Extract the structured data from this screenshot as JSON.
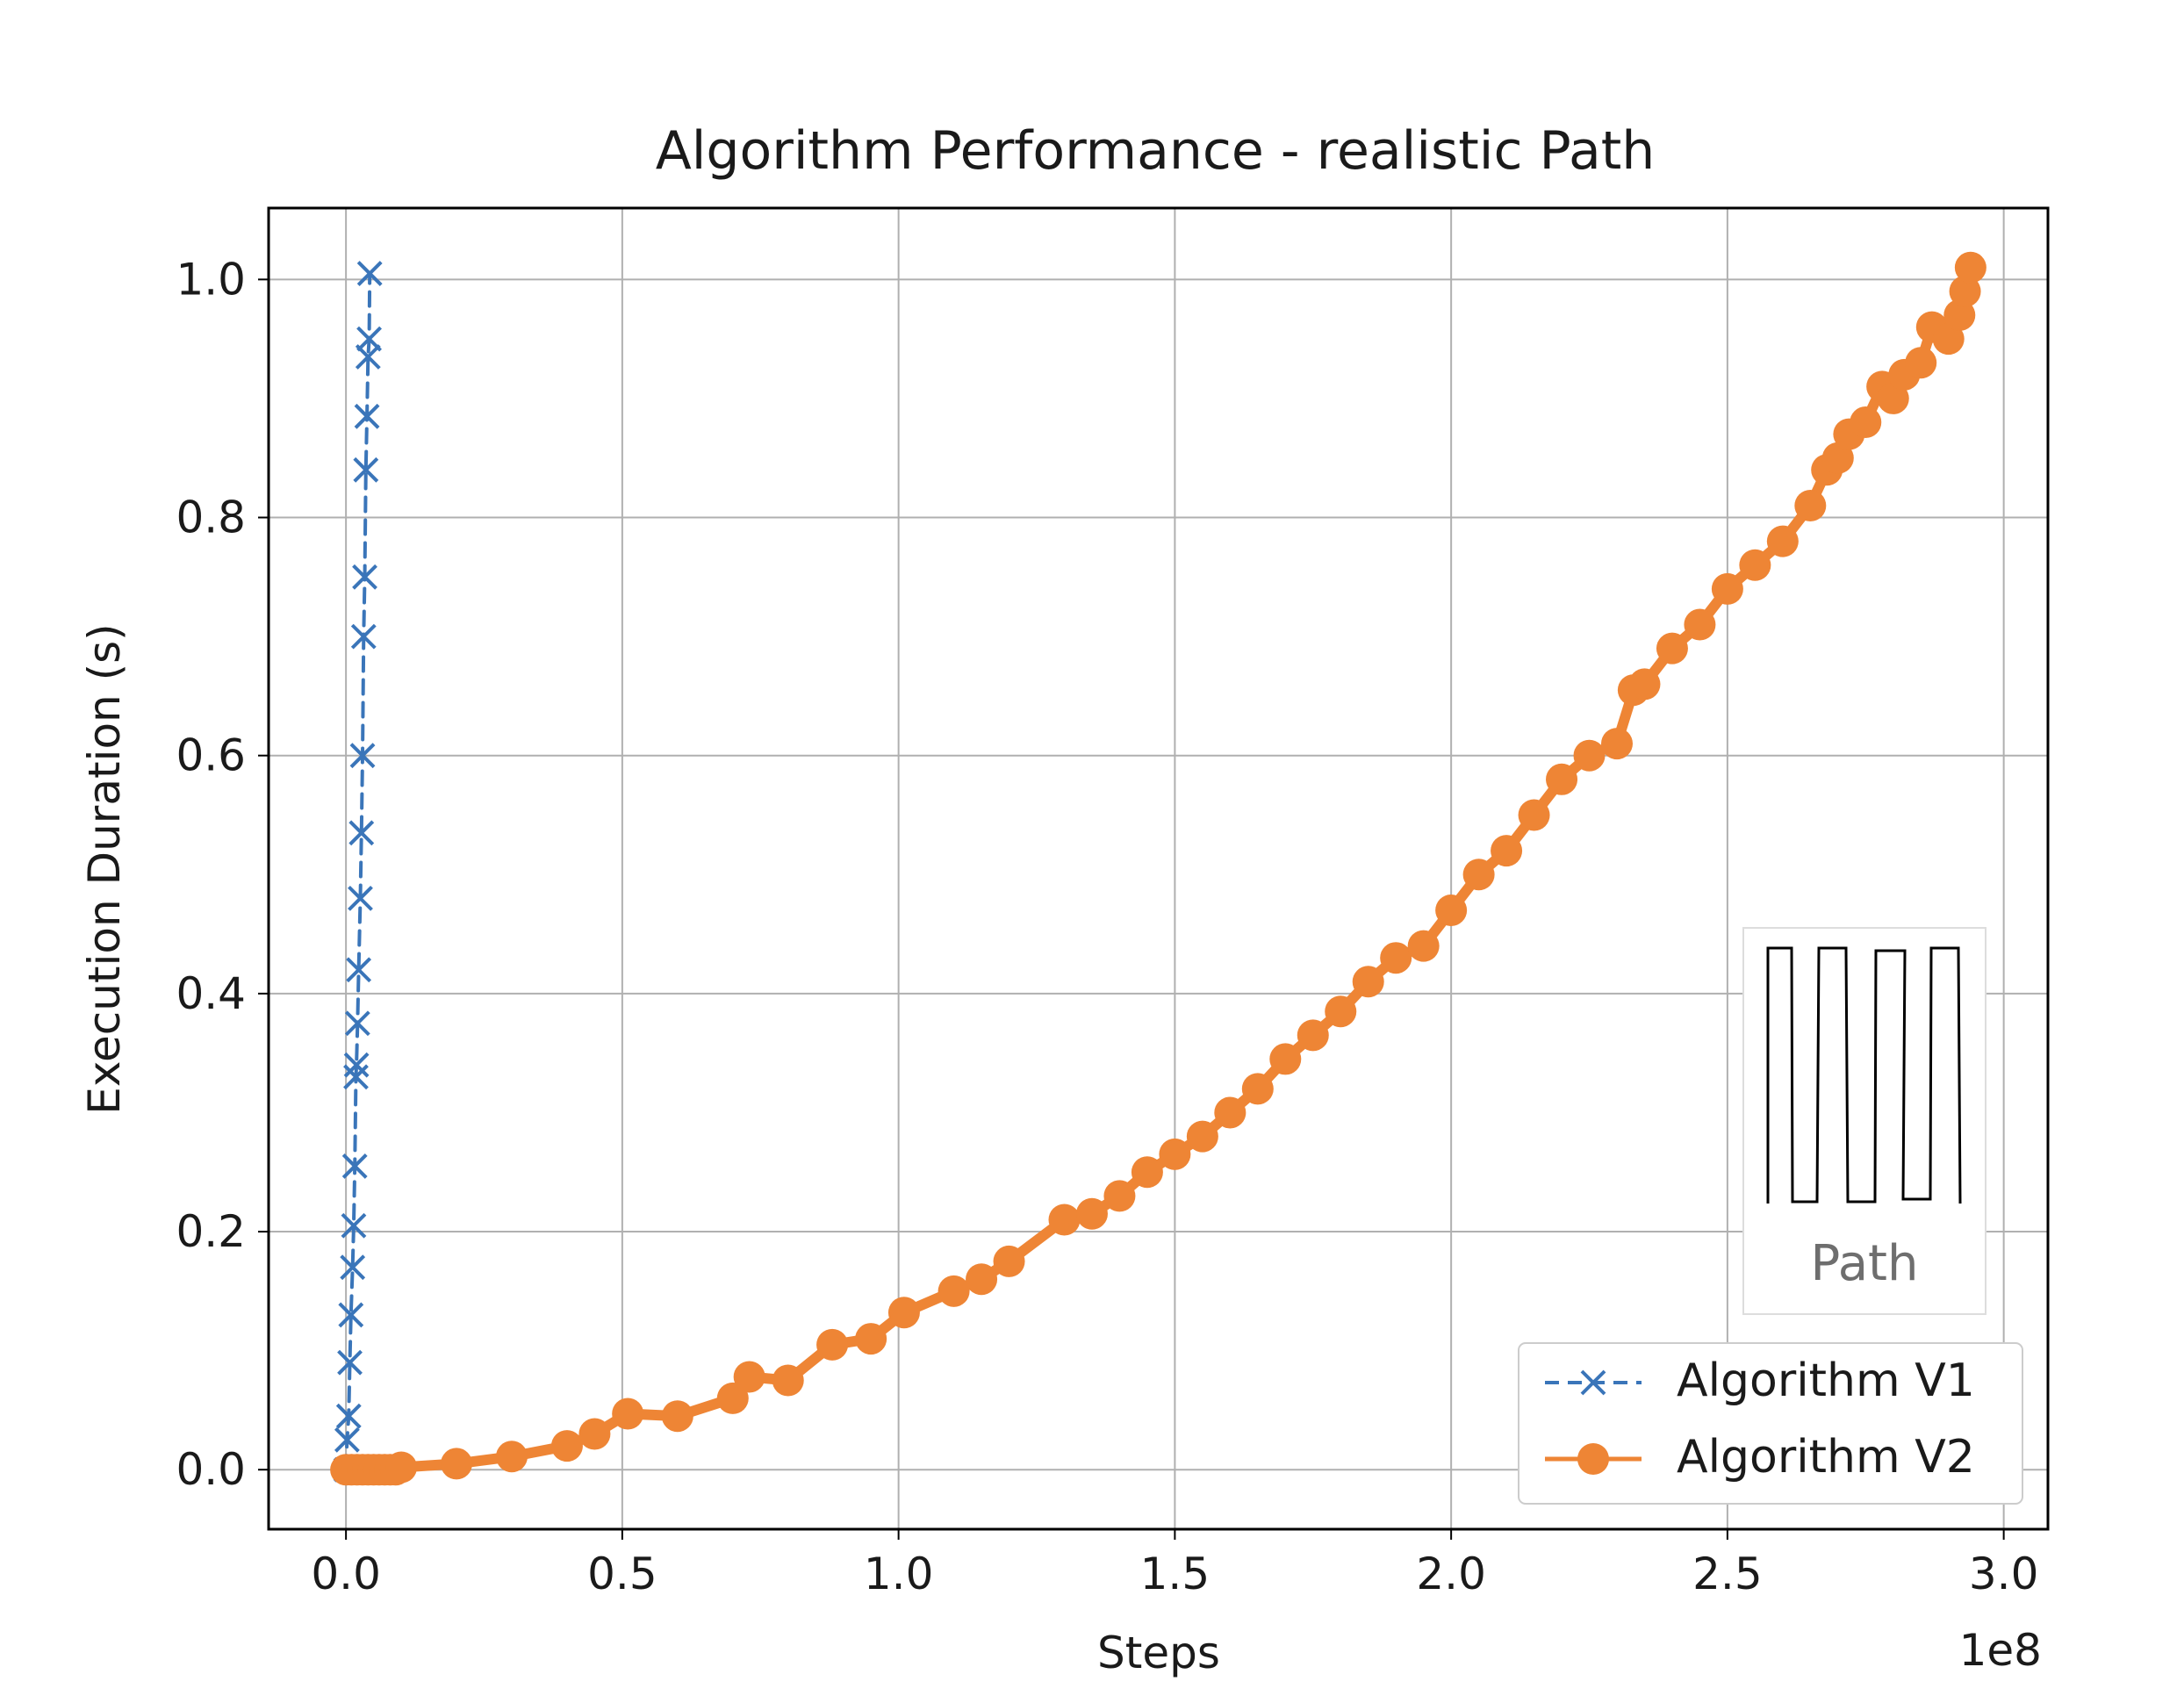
{
  "chart_data": {
    "type": "line",
    "title": "Algorithm Performance - realistic Path",
    "xlabel": "Steps",
    "ylabel": "Execution Duration (s)",
    "x_offset_label": "1e8",
    "xlim": [
      -0.14,
      3.08
    ],
    "ylim": [
      -0.05,
      1.06
    ],
    "x_scale_factor": 100000000,
    "xticks": [
      0.0,
      0.5,
      1.0,
      1.5,
      2.0,
      2.5,
      3.0
    ],
    "xtick_labels": [
      "0.0",
      "0.5",
      "1.0",
      "1.5",
      "2.0",
      "2.5",
      "3.0"
    ],
    "yticks": [
      0.0,
      0.2,
      0.4,
      0.6,
      0.8,
      1.0
    ],
    "ytick_labels": [
      "0.0",
      "0.2",
      "0.4",
      "0.6",
      "0.8",
      "1.0"
    ],
    "grid": true,
    "legend_position": "lower-right",
    "series": [
      {
        "name": "Algorithm V1",
        "color": "#3a75b9",
        "line_style": "dashed",
        "marker": "x",
        "x": [
          0.0,
          0.002,
          0.005,
          0.007,
          0.009,
          0.012,
          0.014,
          0.016,
          0.018,
          0.019,
          0.021,
          0.023,
          0.026,
          0.028,
          0.03,
          0.032,
          0.034,
          0.036,
          0.038,
          0.04,
          0.042,
          0.043
        ],
        "y": [
          0.0,
          0.025,
          0.045,
          0.09,
          0.13,
          0.17,
          0.205,
          0.255,
          0.33,
          0.34,
          0.375,
          0.42,
          0.48,
          0.535,
          0.6,
          0.7,
          0.75,
          0.84,
          0.885,
          0.935,
          0.95,
          1.005
        ]
      },
      {
        "name": "Algorithm V2",
        "color": "#ee8535",
        "line_style": "solid",
        "marker": "o",
        "x": [
          0.0,
          0.01,
          0.02,
          0.03,
          0.04,
          0.05,
          0.06,
          0.07,
          0.08,
          0.09,
          0.1,
          0.2,
          0.3,
          0.4,
          0.45,
          0.51,
          0.6,
          0.7,
          0.73,
          0.8,
          0.88,
          0.95,
          1.01,
          1.1,
          1.15,
          1.2,
          1.3,
          1.35,
          1.4,
          1.45,
          1.5,
          1.55,
          1.6,
          1.65,
          1.7,
          1.75,
          1.8,
          1.85,
          1.9,
          1.95,
          2.0,
          2.05,
          2.1,
          2.15,
          2.2,
          2.25,
          2.3,
          2.33,
          2.35,
          2.4,
          2.45,
          2.5,
          2.55,
          2.6,
          2.65,
          2.68,
          2.7,
          2.72,
          2.75,
          2.78,
          2.8,
          2.82,
          2.85,
          2.87,
          2.9,
          2.92,
          2.93,
          2.94
        ],
        "y": [
          0.0,
          0.0,
          0.0,
          0.0,
          0.0,
          0.0,
          0.0,
          0.0,
          0.0,
          0.0,
          0.002,
          0.005,
          0.011,
          0.02,
          0.03,
          0.047,
          0.045,
          0.06,
          0.078,
          0.075,
          0.105,
          0.11,
          0.132,
          0.15,
          0.16,
          0.175,
          0.21,
          0.215,
          0.23,
          0.25,
          0.265,
          0.28,
          0.3,
          0.32,
          0.345,
          0.365,
          0.385,
          0.41,
          0.43,
          0.44,
          0.47,
          0.5,
          0.52,
          0.55,
          0.58,
          0.6,
          0.61,
          0.655,
          0.66,
          0.69,
          0.71,
          0.74,
          0.76,
          0.78,
          0.81,
          0.84,
          0.85,
          0.87,
          0.88,
          0.91,
          0.9,
          0.92,
          0.93,
          0.96,
          0.95,
          0.97,
          0.99,
          1.01
        ]
      }
    ]
  },
  "inset": {
    "label": "Path"
  }
}
